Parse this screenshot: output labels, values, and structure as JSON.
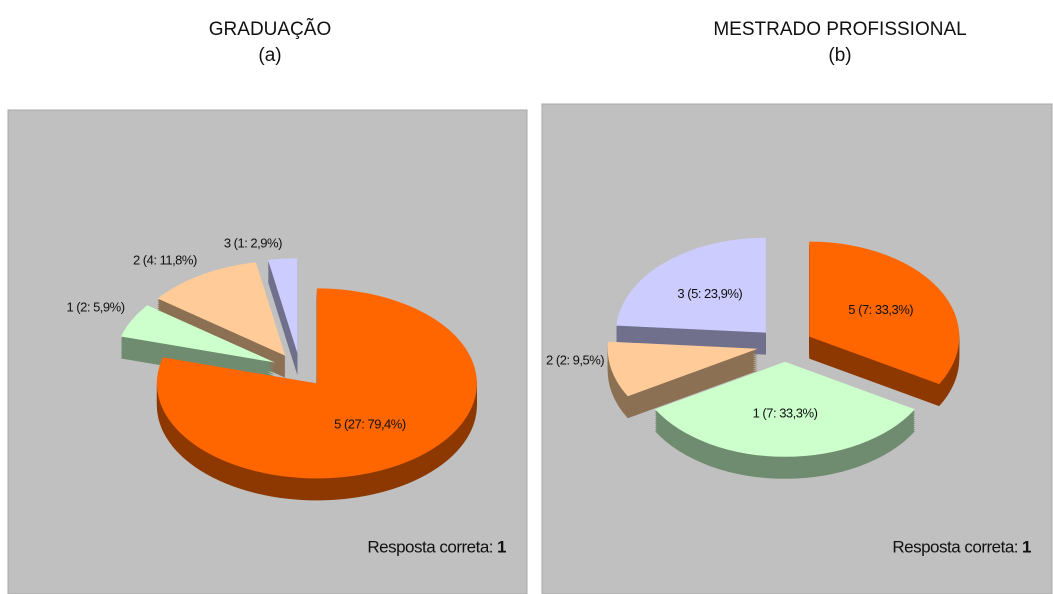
{
  "chart_data": [
    {
      "type": "pie",
      "title": "GRADUAÇÃO",
      "subtitle": "(a)",
      "categories": [
        "5",
        "1",
        "2",
        "3"
      ],
      "values": [
        27,
        2,
        4,
        1
      ],
      "value_labels": [
        "5 (27: 79,4%)",
        "1 (2: 5,9%)",
        "2 (4: 11,8%)",
        "3 (1: 2,9%)"
      ],
      "colors": [
        "#ff6600",
        "#ccffcc",
        "#ffcc99",
        "#ccccff"
      ],
      "annotation": "Resposta correta:",
      "answer": "1"
    },
    {
      "type": "pie",
      "title": "MESTRADO PROFISSIONAL",
      "subtitle": "(b)",
      "categories": [
        "5",
        "1",
        "2",
        "3"
      ],
      "values": [
        7,
        7,
        2,
        5
      ],
      "value_labels": [
        "5 (7: 33,3%)",
        "1 (7: 33,3%)",
        "2 (2: 9,5%)",
        "3 (5: 23,9%)"
      ],
      "colors": [
        "#ff6600",
        "#ccffcc",
        "#ffcc99",
        "#ccccff"
      ],
      "annotation": "Resposta correta:",
      "answer": "1"
    }
  ]
}
